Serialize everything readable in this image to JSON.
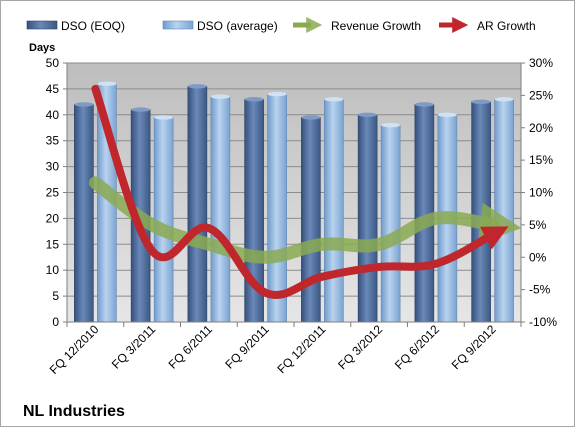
{
  "chart_data": {
    "type": "bar",
    "title": "",
    "ylabel": "Days",
    "ylim": [
      0,
      50
    ],
    "y_ticks": [
      0,
      5,
      10,
      15,
      20,
      25,
      30,
      35,
      40,
      45,
      50
    ],
    "y2lim": [
      -10,
      30
    ],
    "y2_ticks": [
      "-10%",
      "-5%",
      "0%",
      "5%",
      "10%",
      "15%",
      "20%",
      "25%",
      "30%"
    ],
    "categories": [
      "FQ 12/2010",
      "FQ 3/2011",
      "FQ 6/2011",
      "FQ 9/2011",
      "FQ 12/2011",
      "FQ 3/2012",
      "FQ 6/2012",
      "FQ 9/2012"
    ],
    "series": [
      {
        "name": "DSO (EOQ)",
        "type": "bar",
        "axis": "left",
        "color": "#4f6d9c",
        "values": [
          42,
          41,
          45.5,
          43,
          39.5,
          40,
          42,
          42.5
        ]
      },
      {
        "name": "DSO (average)",
        "type": "bar",
        "axis": "left",
        "color": "#8fb4de",
        "values": [
          46,
          39.5,
          43.5,
          44,
          43,
          38,
          40,
          43
        ]
      },
      {
        "name": "Revenue Growth",
        "type": "line",
        "axis": "right",
        "color": "#8aaa52",
        "values": [
          11.5,
          5,
          2,
          0,
          2,
          2,
          6,
          5
        ]
      },
      {
        "name": "AR Growth",
        "type": "line",
        "axis": "right",
        "color": "#c0272d",
        "values": [
          26,
          1,
          4.5,
          -5.5,
          -3,
          -1.5,
          -1,
          3.5
        ]
      }
    ],
    "legend_position": "top",
    "grid": true
  },
  "company_name": "NL Industries"
}
